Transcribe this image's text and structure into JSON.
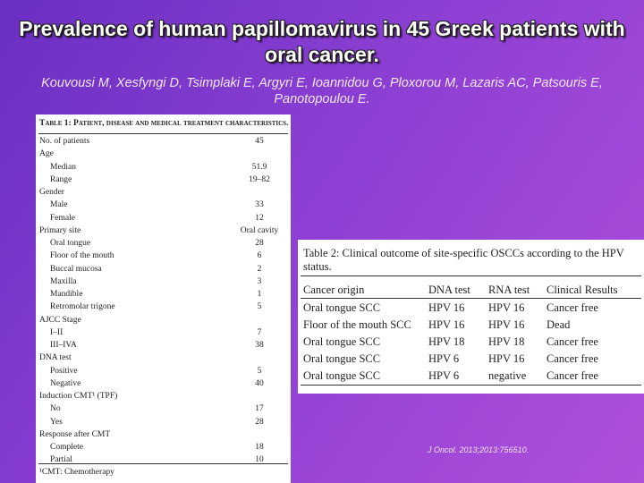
{
  "header": {
    "title": "Prevalence of human papillomavirus in 45 Greek patients with oral cancer.",
    "authors": "Kouvousi M, Xesfyngi D, Tsimplaki E, Argyri E, Ioannidou G, Ploxorou M, Lazaris AC, Patsouris E, Panotopoulou E."
  },
  "table1": {
    "title": "Table 1: Patient, disease and medical treatment characteristics.",
    "sections": [
      {
        "label": "No. of patients",
        "value": "45"
      },
      {
        "label": "Age",
        "items": [
          [
            "Median",
            "51.9"
          ],
          [
            "Range",
            "19–82"
          ]
        ]
      },
      {
        "label": "Gender",
        "items": [
          [
            "Male",
            "33"
          ],
          [
            "Female",
            "12"
          ]
        ]
      },
      {
        "label": "Primary site",
        "value": "Oral cavity",
        "items": [
          [
            "Oral tongue",
            "28"
          ],
          [
            "Floor of the mouth",
            "6"
          ],
          [
            "Buccal mucosa",
            "2"
          ],
          [
            "Maxilla",
            "3"
          ],
          [
            "Mandible",
            "1"
          ],
          [
            "Retromolar trigone",
            "5"
          ]
        ]
      },
      {
        "label": "AJCC Stage",
        "items": [
          [
            "I–II",
            "7"
          ],
          [
            "III–IVA",
            "38"
          ]
        ]
      },
      {
        "label": "DNA test",
        "items": [
          [
            "Positive",
            "5"
          ],
          [
            "Negative",
            "40"
          ]
        ]
      },
      {
        "label": "Induction CMT¹ (TPF)",
        "items": [
          [
            "No",
            "17"
          ],
          [
            "Yes",
            "28"
          ]
        ]
      },
      {
        "label": "Response after CMT",
        "items": [
          [
            "Complete",
            "18"
          ],
          [
            "Partial",
            "10"
          ]
        ]
      }
    ],
    "footnote": "¹CMT: Chemotherapy"
  },
  "table2": {
    "title": "Table 2: Clinical outcome of site-specific OSCCs according to the HPV status.",
    "columns": [
      "Cancer origin",
      "DNA test",
      "RNA test",
      "Clinical Results"
    ],
    "rows": [
      [
        "Oral tongue SCC",
        "HPV 16",
        "HPV 16",
        "Cancer free"
      ],
      [
        "Floor of the mouth SCC",
        "HPV 16",
        "HPV 16",
        "Dead"
      ],
      [
        "Oral tongue SCC",
        "HPV 18",
        "HPV 18",
        "Cancer free"
      ],
      [
        "Oral tongue SCC",
        "HPV 6",
        "HPV 16",
        "Cancer free"
      ],
      [
        "Oral tongue SCC",
        "HPV 6",
        "negative",
        "Cancer free"
      ]
    ]
  },
  "citation": "J Oncol. 2013;2013:756510."
}
